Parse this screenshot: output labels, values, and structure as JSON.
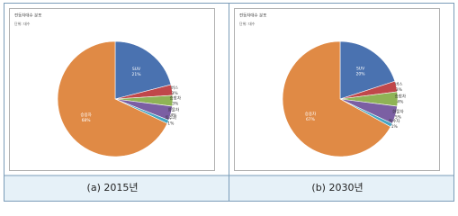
{
  "chart_data": [
    {
      "type": "pie",
      "title": "전동차대수 분포",
      "subtitle": "단위: 대수",
      "caption": "(a)  2015년",
      "categories": [
        "SUV",
        "버스",
        "승합차",
        "화물차",
        "특수차",
        "승용차"
      ],
      "values": [
        21,
        3,
        3,
        4,
        1,
        68
      ],
      "value_labels": [
        "21%",
        "3%",
        "3%",
        "4%",
        "1%",
        "68%"
      ],
      "colors": [
        "#4a72b0",
        "#c0474a",
        "#8fb356",
        "#7b5fa3",
        "#46a5c2",
        "#e08a45"
      ]
    },
    {
      "type": "pie",
      "title": "전동차대수 분포",
      "subtitle": "단위: 대수",
      "caption": "(b)  2030년",
      "categories": [
        "SUV",
        "버스",
        "승합차",
        "화물차",
        "특수차",
        "승용차"
      ],
      "values": [
        20,
        3,
        4,
        5,
        1,
        67
      ],
      "value_labels": [
        "20%",
        "3%",
        "4%",
        "5%",
        "1%",
        "67%"
      ],
      "colors": [
        "#4a72b0",
        "#c0474a",
        "#8fb356",
        "#7b5fa3",
        "#46a5c2",
        "#e08a45"
      ]
    }
  ]
}
